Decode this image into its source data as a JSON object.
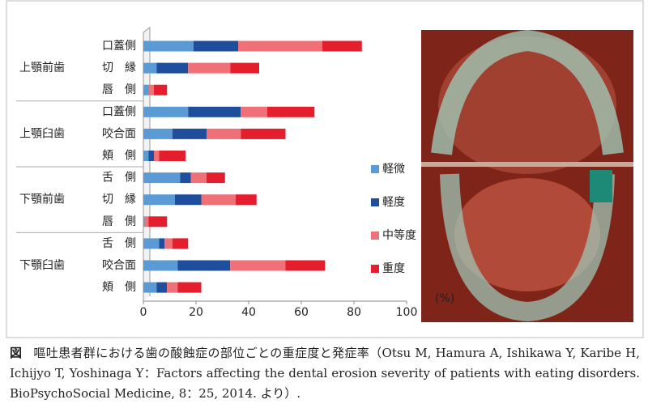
{
  "chart_data": {
    "type": "stacked-bar-horizontal",
    "groups": [
      "上顎前歯",
      "上顎臼歯",
      "下顎前歯",
      "下顎臼歯"
    ],
    "categories": [
      "口蓋側",
      "切　縁",
      "唇　側",
      "口蓋側",
      "咬合面",
      "頬　側",
      "舌　側",
      "切　縁",
      "唇　側",
      "舌　側",
      "咬合面",
      "頬　側"
    ],
    "series": [
      {
        "name": "軽微",
        "color": "#5b9bd5",
        "values": [
          19,
          5,
          2,
          17,
          11,
          2,
          14,
          12,
          0.5,
          6,
          13,
          5
        ]
      },
      {
        "name": "軽度",
        "color": "#1f4e9c",
        "values": [
          17,
          12,
          0,
          20,
          13,
          2,
          4,
          10,
          0,
          2,
          20,
          4
        ]
      },
      {
        "name": "中等度",
        "color": "#f07078",
        "values": [
          32,
          16,
          2,
          10,
          13,
          2,
          6,
          13,
          1.5,
          3,
          21,
          4
        ]
      },
      {
        "name": "重度",
        "color": "#e41e2c",
        "values": [
          15,
          11,
          5,
          18,
          17,
          10,
          7,
          8,
          7,
          6,
          15,
          9
        ]
      }
    ],
    "xlim": [
      0,
      100
    ],
    "xticks": [
      0,
      20,
      40,
      60,
      80,
      100
    ],
    "x_unit": "(%)",
    "legend": "right"
  },
  "caption_label": "図",
  "caption": "嘔吐患者群における歯の酸蝕症の部位ごとの重症度と発症率（Otsu M, Hamura A, Ishikawa Y, Karibe H, Ichijyo T, Yoshinaga Y：Factors affecting the dental erosion severity of patients with eating disorders. BioPsychoSocial Medicine, 8：25, 2014. より）."
}
